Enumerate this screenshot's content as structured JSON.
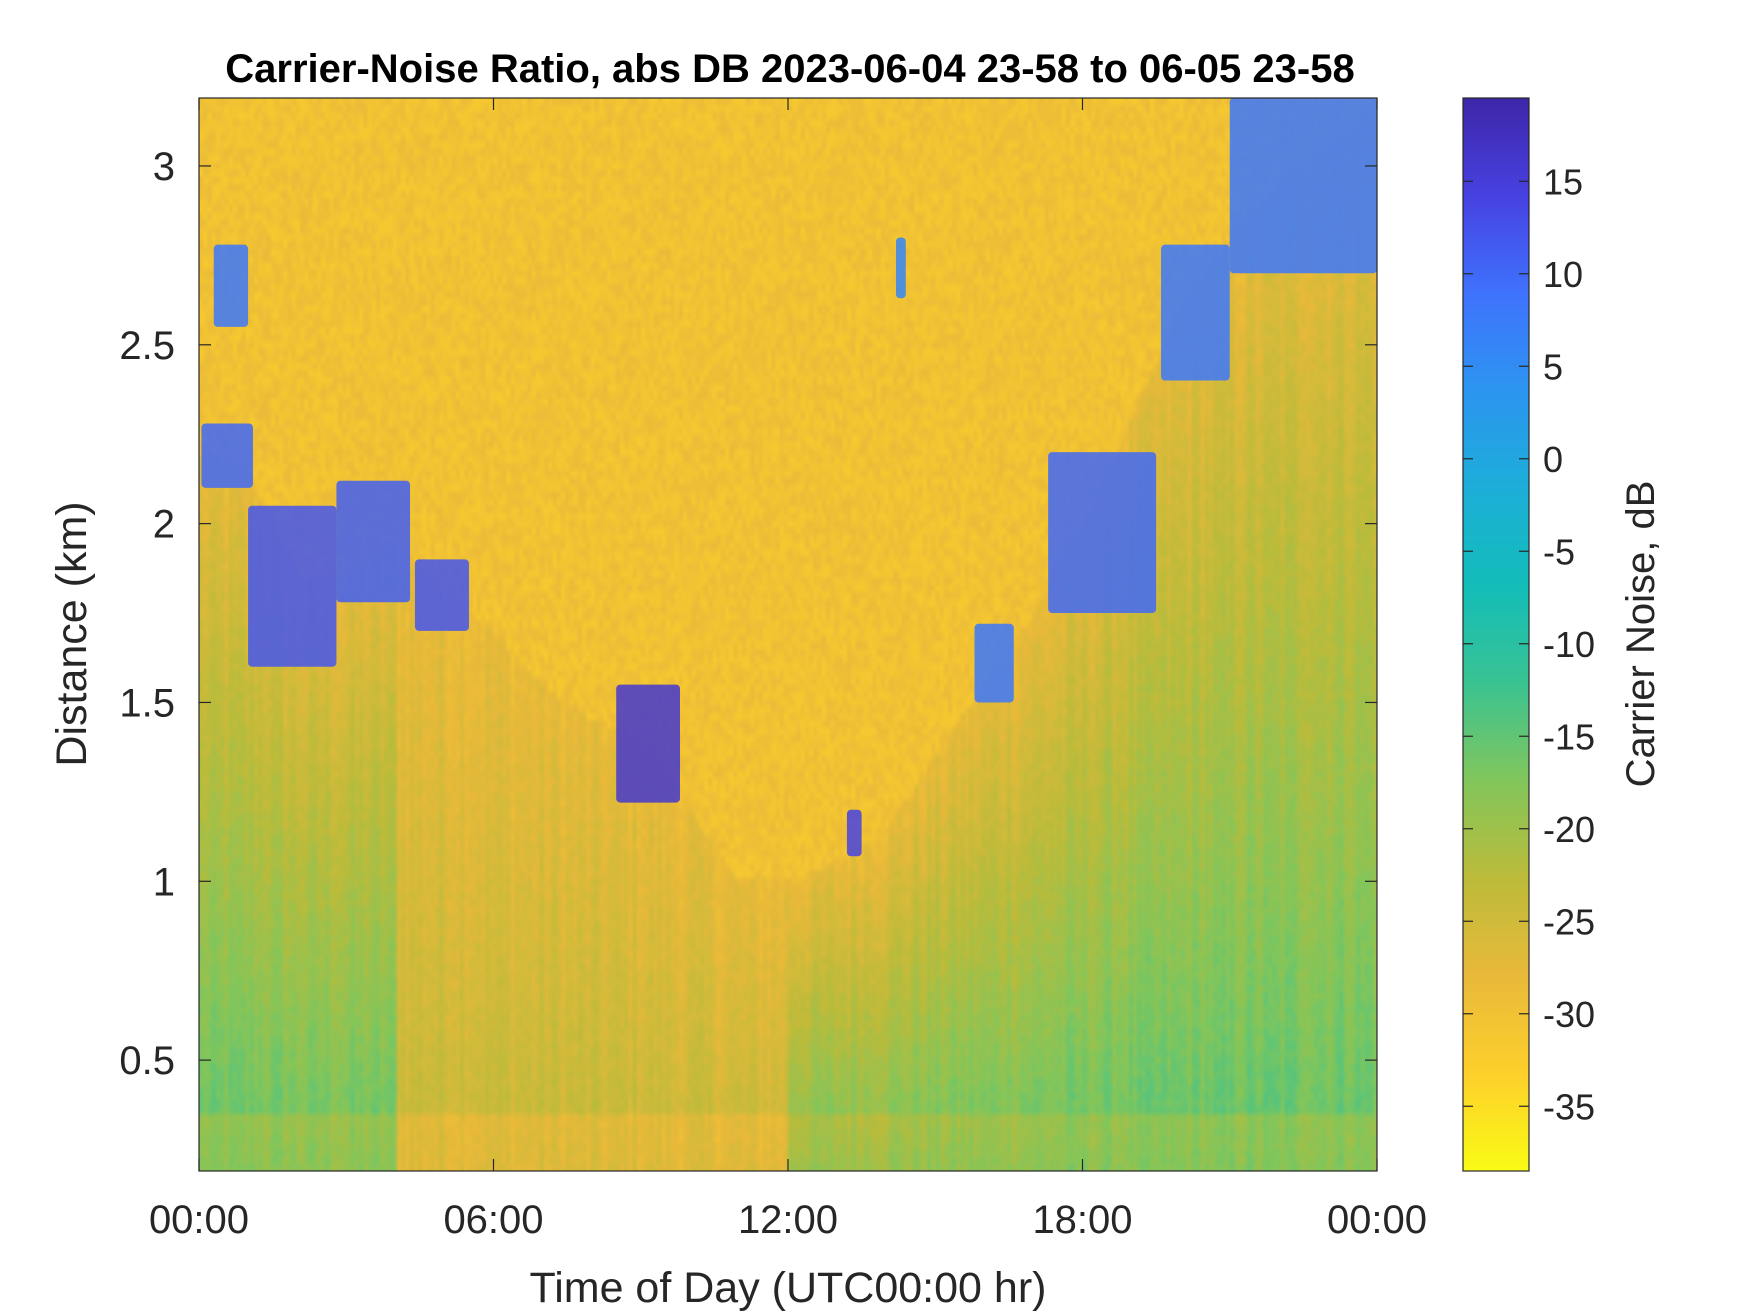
{
  "chart_data": {
    "type": "heatmap",
    "title": "Carrier-Noise Ratio, abs DB 2023-06-04 23-58 to 06-05 23-58",
    "xlabel": "Time of Day (UTC00:00 hr)",
    "ylabel": "Distance (km)",
    "colorbar_label": "Carrier Noise, dB",
    "x_unit": "hours",
    "xlim": [
      0,
      24
    ],
    "ylim": [
      0.19,
      3.19
    ],
    "x_ticks": [
      {
        "value": 0,
        "label": "00:00"
      },
      {
        "value": 6,
        "label": "06:00"
      },
      {
        "value": 12,
        "label": "12:00"
      },
      {
        "value": 18,
        "label": "18:00"
      },
      {
        "value": 24,
        "label": "00:00"
      }
    ],
    "y_ticks": [
      {
        "value": 0.5,
        "label": "0.5"
      },
      {
        "value": 1,
        "label": "1"
      },
      {
        "value": 1.5,
        "label": "1.5"
      },
      {
        "value": 2,
        "label": "2"
      },
      {
        "value": 2.5,
        "label": "2.5"
      },
      {
        "value": 3,
        "label": "3"
      }
    ],
    "clim": [
      -38.5,
      19.5
    ],
    "colorbar_ticks": [
      {
        "value": 15,
        "label": "15"
      },
      {
        "value": 10,
        "label": "10"
      },
      {
        "value": 5,
        "label": "5"
      },
      {
        "value": 0,
        "label": "0"
      },
      {
        "value": -5,
        "label": "-5"
      },
      {
        "value": -10,
        "label": "-10"
      },
      {
        "value": -15,
        "label": "-15"
      },
      {
        "value": -20,
        "label": "-20"
      },
      {
        "value": -25,
        "label": "-25"
      },
      {
        "value": -30,
        "label": "-30"
      },
      {
        "value": -35,
        "label": "-35"
      }
    ],
    "colormap": "parula",
    "colormap_stops": [
      "#3e26a8",
      "#4741e1",
      "#3f72fd",
      "#2c95f0",
      "#1caed8",
      "#12bdb9",
      "#3ac392",
      "#82c65b",
      "#bcbb3a",
      "#e9b93a",
      "#fdd02b",
      "#f9fb15"
    ],
    "grid": false,
    "boundary_layer_top_km": [
      [
        0,
        2.2
      ],
      [
        1,
        2.15
      ],
      [
        2,
        1.85
      ],
      [
        3,
        1.85
      ],
      [
        4,
        1.95
      ],
      [
        5,
        1.8
      ],
      [
        6,
        1.7
      ],
      [
        7,
        1.55
      ],
      [
        8,
        1.45
      ],
      [
        9,
        1.4
      ],
      [
        10,
        1.2
      ],
      [
        11,
        1.0
      ],
      [
        12,
        1.0
      ],
      [
        13,
        1.05
      ],
      [
        14,
        1.15
      ],
      [
        15,
        1.35
      ],
      [
        16,
        1.55
      ],
      [
        17,
        1.75
      ],
      [
        18,
        2.0
      ],
      [
        19,
        2.3
      ],
      [
        20,
        2.6
      ],
      [
        21,
        2.8
      ],
      [
        22,
        2.95
      ],
      [
        23,
        3.05
      ],
      [
        24,
        3.15
      ]
    ],
    "aerosol_features": [
      {
        "time_start": 0.05,
        "time_end": 1.1,
        "distance_bottom": 2.1,
        "distance_top": 2.28,
        "cnr_db": 10
      },
      {
        "time_start": 0.3,
        "time_end": 1.0,
        "distance_bottom": 2.55,
        "distance_top": 2.78,
        "cnr_db": 8
      },
      {
        "time_start": 1.0,
        "time_end": 2.8,
        "distance_bottom": 1.6,
        "distance_top": 2.05,
        "cnr_db": 12
      },
      {
        "time_start": 2.8,
        "time_end": 4.3,
        "distance_bottom": 1.78,
        "distance_top": 2.12,
        "cnr_db": 11
      },
      {
        "time_start": 4.4,
        "time_end": 5.5,
        "distance_bottom": 1.7,
        "distance_top": 1.9,
        "cnr_db": 12
      },
      {
        "time_start": 8.5,
        "time_end": 9.8,
        "distance_bottom": 1.22,
        "distance_top": 1.55,
        "cnr_db": 16
      },
      {
        "time_start": 13.2,
        "time_end": 13.5,
        "distance_bottom": 1.07,
        "distance_top": 1.2,
        "cnr_db": 14
      },
      {
        "time_start": 14.2,
        "time_end": 14.4,
        "distance_bottom": 2.63,
        "distance_top": 2.8,
        "cnr_db": 6
      },
      {
        "time_start": 15.8,
        "time_end": 16.6,
        "distance_bottom": 1.5,
        "distance_top": 1.72,
        "cnr_db": 8
      },
      {
        "time_start": 17.3,
        "time_end": 19.5,
        "distance_bottom": 1.75,
        "distance_top": 2.2,
        "cnr_db": 10
      },
      {
        "time_start": 19.6,
        "time_end": 21.0,
        "distance_bottom": 2.4,
        "distance_top": 2.78,
        "cnr_db": 8
      },
      {
        "time_start": 21.0,
        "time_end": 24.0,
        "distance_bottom": 2.7,
        "distance_top": 3.19,
        "cnr_db": 8
      }
    ]
  }
}
